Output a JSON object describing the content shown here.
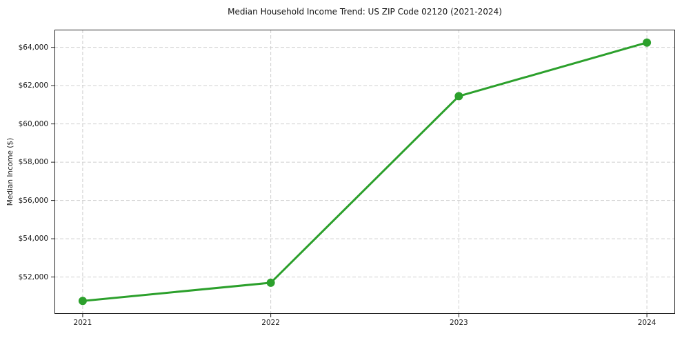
{
  "chart_data": {
    "type": "line",
    "title": "Median Household Income Trend: US ZIP Code 02120 (2021-2024)",
    "xlabel": "",
    "ylabel": "Median Income ($)",
    "x": [
      2021,
      2022,
      2023,
      2024
    ],
    "values": [
      50750,
      51700,
      61450,
      64250
    ],
    "xticks": {
      "values": [
        2021,
        2022,
        2023,
        2024
      ],
      "labels": [
        "2021",
        "2022",
        "2023",
        "2024"
      ]
    },
    "yticks": {
      "values": [
        52000,
        54000,
        56000,
        58000,
        60000,
        62000,
        64000
      ],
      "labels": [
        "$52,000",
        "$54,000",
        "$56,000",
        "$58,000",
        "$60,000",
        "$62,000",
        "$64,000"
      ]
    },
    "xlim": [
      2020.85,
      2024.15
    ],
    "ylim": [
      50075,
      64925
    ],
    "grid": true,
    "grid_style": "dashed",
    "legend": false,
    "colors": {
      "line": "#2ca02c",
      "marker": "#2ca02c",
      "grid": "#cfcfcf",
      "spine": "#222222",
      "tick_text": "#1a1a1a",
      "title_text": "#111111",
      "background": "#ffffff"
    }
  }
}
